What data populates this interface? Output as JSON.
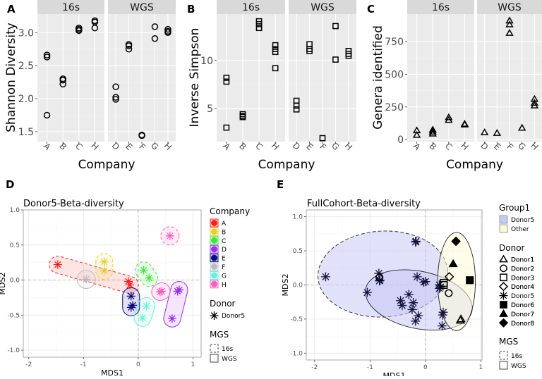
{
  "chart_data": [
    {
      "panel_label": "A",
      "type": "scatter",
      "ylabel": "Shannon Diversity",
      "xlabel": "Company",
      "ylim": [
        1.35,
        3.28
      ],
      "yticks": [
        1.5,
        2.0,
        2.5,
        3.0
      ],
      "ytick_labels": [
        "1.5",
        "2.0",
        "2.5",
        "3.0"
      ],
      "shape": "open-circle",
      "grid": true,
      "facets": [
        {
          "strip": "16s",
          "categories": [
            "A",
            "B",
            "C",
            "H"
          ],
          "values": [
            [
              2.66,
              2.63,
              1.75
            ],
            [
              2.3,
              2.28,
              2.22
            ],
            [
              3.07,
              3.05,
              3.03
            ],
            [
              3.18,
              3.16,
              3.07
            ]
          ]
        },
        {
          "strip": "WGS",
          "categories": [
            "D",
            "E",
            "F",
            "G",
            "H"
          ],
          "values": [
            [
              2.18,
              2.02,
              1.99
            ],
            [
              2.82,
              2.8,
              2.75
            ],
            [
              1.44,
              1.45
            ],
            [
              3.09,
              2.91
            ],
            [
              3.05,
              3.02,
              3.0
            ]
          ]
        }
      ]
    },
    {
      "panel_label": "B",
      "type": "scatter",
      "ylabel": "Inverse Simpson",
      "xlabel": "Company",
      "ylim": [
        1.54,
        14.85
      ],
      "yticks": [
        5,
        10
      ],
      "ytick_labels": [
        "5",
        "10"
      ],
      "shape": "open-square",
      "grid": true,
      "facets": [
        {
          "strip": "16s",
          "categories": [
            "A",
            "B",
            "C",
            "H"
          ],
          "values": [
            [
              8.2,
              7.8,
              3.0
            ],
            [
              4.4,
              4.2,
              4.1
            ],
            [
              14.1,
              13.8,
              13.4
            ],
            [
              11.6,
              11.2,
              10.9,
              9.2
            ]
          ]
        },
        {
          "strip": "WGS",
          "categories": [
            "D",
            "E",
            "F",
            "G",
            "H"
          ],
          "values": [
            [
              5.8,
              5.3,
              4.9
            ],
            [
              11.7,
              11.2,
              11.0
            ],
            [
              1.9
            ],
            [
              13.6,
              10.1
            ],
            [
              11.0,
              10.7,
              10.5
            ]
          ]
        }
      ]
    },
    {
      "panel_label": "C",
      "type": "scatter",
      "ylabel": "Genera identified",
      "xlabel": "Company",
      "ylim": [
        -15,
        960
      ],
      "yticks": [
        0,
        250,
        500,
        750
      ],
      "ytick_labels": [
        "0",
        "250",
        "500",
        "750"
      ],
      "shape": "open-triangle",
      "grid": true,
      "facets": [
        {
          "strip": "16s",
          "categories": [
            "A",
            "B",
            "C",
            "H"
          ],
          "values": [
            [
              70,
              35
            ],
            [
              75,
              60,
              45
            ],
            [
              170,
              150
            ],
            [
              120,
              115
            ]
          ]
        },
        {
          "strip": "WGS",
          "categories": [
            "D",
            "E",
            "F",
            "G",
            "H"
          ],
          "values": [
            [
              55
            ],
            [
              50
            ],
            [
              910,
              880,
              815
            ],
            [
              90
            ],
            [
              310,
              280,
              260
            ]
          ]
        }
      ]
    },
    {
      "panel_label": "D",
      "type": "scatter",
      "title": "Donor5-Beta-diversity",
      "xlabel": "MDS1",
      "ylabel": "MDS2",
      "xlim": [
        -2.1,
        1.15
      ],
      "ylim": [
        -1.1,
        1.0
      ],
      "xticks": [
        -2,
        -1,
        0,
        1
      ],
      "xtick_labels": [
        "-2",
        "-1",
        "0",
        "1"
      ],
      "yticks": [
        -1.0,
        -0.5,
        0.0,
        0.5,
        1.0
      ],
      "ytick_labels": [
        "-1.0",
        "-0.5",
        "0.0",
        "0.5",
        "1.0"
      ],
      "grid": true,
      "legend_placement": "right",
      "legend": {
        "company_title": "Company",
        "companies": [
          {
            "name": "A",
            "color": "#ff1f1f"
          },
          {
            "name": "B",
            "color": "#e8cf2e"
          },
          {
            "name": "C",
            "color": "#3ee63e"
          },
          {
            "name": "D",
            "color": "#9b30f0"
          },
          {
            "name": "E",
            "color": "#0a0a82"
          },
          {
            "name": "F",
            "color": "#bdbdbd"
          },
          {
            "name": "G",
            "color": "#6af0d8"
          },
          {
            "name": "H",
            "color": "#ff5cc0"
          }
        ],
        "donor_title": "Donor",
        "donors": [
          "Donor5"
        ],
        "mgs_title": "MGS",
        "mgs": [
          "16s",
          "WGS"
        ]
      },
      "groups": [
        {
          "company": "A",
          "mgs": "16s",
          "points": [
            [
              -1.47,
              0.22
            ],
            [
              -0.18,
              -0.02
            ],
            [
              -0.15,
              -0.07
            ]
          ]
        },
        {
          "company": "B",
          "mgs": "16s",
          "points": [
            [
              -0.62,
              0.26
            ],
            [
              -0.62,
              0.13
            ]
          ]
        },
        {
          "company": "C",
          "mgs": "16s",
          "points": [
            [
              0.1,
              0.14
            ],
            [
              0.2,
              0.03
            ]
          ]
        },
        {
          "company": "H",
          "mgs": "16s",
          "points": [
            [
              0.58,
              0.63
            ]
          ]
        },
        {
          "company": "D",
          "mgs": "WGS",
          "points": [
            [
              0.75,
              -0.14
            ],
            [
              0.72,
              -0.16
            ],
            [
              0.62,
              -0.55
            ]
          ]
        },
        {
          "company": "E",
          "mgs": "WGS",
          "points": [
            [
              -0.13,
              -0.23
            ],
            [
              -0.1,
              -0.36
            ],
            [
              -0.13,
              -0.39
            ]
          ]
        },
        {
          "company": "F",
          "mgs": "WGS",
          "points": [
            [
              -0.95,
              0.01
            ]
          ]
        },
        {
          "company": "G",
          "mgs": "WGS",
          "points": [
            [
              0.15,
              -0.37
            ],
            [
              0.08,
              -0.54
            ]
          ]
        },
        {
          "company": "H",
          "mgs": "WGS",
          "points": [
            [
              0.4,
              -0.17
            ],
            [
              0.43,
              -0.16
            ]
          ]
        }
      ]
    },
    {
      "panel_label": "E",
      "type": "scatter",
      "title": "FullCohort-Beta-diversity",
      "xlabel": "MDS1",
      "ylabel": "MDS2",
      "xlim": [
        -2.15,
        1.02
      ],
      "ylim": [
        -1.1,
        1.1
      ],
      "xticks": [
        -2,
        -1,
        0,
        1
      ],
      "xtick_labels": [
        "-2",
        "-1",
        "0",
        "1"
      ],
      "yticks": [
        -1.0,
        -0.5,
        0.0,
        0.5,
        1.0
      ],
      "ytick_labels": [
        "-1.0",
        "-0.5",
        "0.0",
        "0.5",
        "1.0"
      ],
      "grid": true,
      "legend_placement": "right",
      "legend": {
        "group_title": "Group1",
        "groups": [
          {
            "name": "Donor5",
            "color": "#c8c8f5"
          },
          {
            "name": "Other",
            "color": "#fbfbd8"
          }
        ],
        "donor_title": "Donor",
        "donors": [
          {
            "name": "Donor1",
            "shape": "open-triangle"
          },
          {
            "name": "Donor2",
            "shape": "open-circle"
          },
          {
            "name": "Donor3",
            "shape": "open-square"
          },
          {
            "name": "Donor4",
            "shape": "open-diamond"
          },
          {
            "name": "Donor5",
            "shape": "asterisk"
          },
          {
            "name": "Donor6",
            "shape": "filled-square"
          },
          {
            "name": "Donor7",
            "shape": "filled-triangle"
          },
          {
            "name": "Donor8",
            "shape": "filled-diamond"
          }
        ],
        "mgs_title": "MGS",
        "mgs": [
          "16s",
          "WGS"
        ]
      },
      "points": [
        {
          "donor": "Donor5",
          "xy": [
            [
              -1.8,
              0.12
            ],
            [
              -1.05,
              -0.11
            ],
            [
              -0.84,
              0.17
            ],
            [
              -0.83,
              0.06
            ],
            [
              -0.82,
              0.07
            ],
            [
              -0.18,
              0.63
            ],
            [
              -0.17,
              0.64
            ],
            [
              -0.15,
              0.12
            ],
            [
              0.0,
              0.05
            ],
            [
              -0.03,
              0.04
            ],
            [
              -0.45,
              -0.23
            ],
            [
              -0.42,
              -0.3
            ],
            [
              -0.3,
              -0.14
            ],
            [
              -0.22,
              -0.26
            ],
            [
              -0.24,
              -0.36
            ],
            [
              -0.13,
              -0.45
            ],
            [
              -0.18,
              -0.53
            ],
            [
              0.25,
              0.0
            ],
            [
              0.25,
              -0.05
            ],
            [
              0.27,
              -0.03
            ],
            [
              0.32,
              -0.4
            ],
            [
              0.31,
              -0.44
            ],
            [
              0.3,
              -0.6
            ]
          ]
        },
        {
          "donor": "Donor1",
          "xy": [
            [
              0.63,
              -0.52
            ],
            [
              0.64,
              -0.5
            ]
          ]
        },
        {
          "donor": "Donor2",
          "xy": [
            [
              0.42,
              -0.12
            ],
            [
              -0.83,
              0.11
            ]
          ]
        },
        {
          "donor": "Donor3",
          "xy": [
            [
              0.33,
              0.03
            ],
            [
              0.33,
              0.0
            ]
          ]
        },
        {
          "donor": "Donor4",
          "xy": [
            [
              0.43,
              0.12
            ]
          ]
        },
        {
          "donor": "Donor6",
          "xy": [
            [
              0.8,
              0.07
            ]
          ]
        },
        {
          "donor": "Donor7",
          "xy": [
            [
              0.5,
              0.31
            ]
          ]
        },
        {
          "donor": "Donor8",
          "xy": [
            [
              0.55,
              0.64
            ]
          ]
        }
      ]
    }
  ]
}
